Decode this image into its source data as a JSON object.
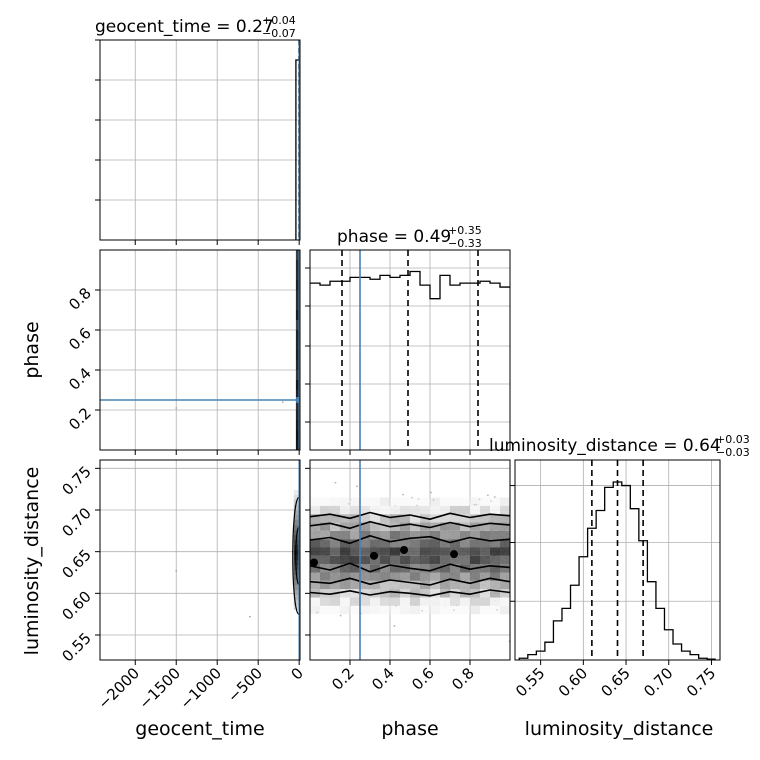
{
  "chart_data": {
    "type": "corner",
    "parameters": [
      "geocent_time",
      "phase",
      "luminosity_distance"
    ],
    "truth": {
      "geocent_time": 0,
      "phase": 0.25,
      "luminosity_distance": 0.65
    },
    "colors": {
      "truth": "#4682b4",
      "hist": "#000000",
      "grid": "#b0b0b0",
      "density_dark": "#1a1a1a"
    },
    "titles": [
      {
        "param": "geocent_time",
        "prefix": "geocent_time = 0.27",
        "sup": "+0.04",
        "sub": "−0.07"
      },
      {
        "param": "phase",
        "prefix": "phase = 0.49",
        "sup": "+0.35",
        "sub": "−0.33"
      },
      {
        "param": "luminosity_distance",
        "prefix": "luminosity_distance = 0.64",
        "sup": "+0.03",
        "sub": "−0.03"
      }
    ],
    "axis_labels": {
      "bottom": [
        "geocent_time",
        "phase",
        "luminosity_distance"
      ],
      "left": [
        "phase",
        "luminosity_distance"
      ]
    },
    "ranges": {
      "geocent_time": [
        -2430,
        10
      ],
      "phase": [
        0,
        1
      ],
      "luminosity_distance": [
        0.52,
        0.76
      ]
    },
    "ticks": {
      "geocent_time": {
        "values": [
          -2000,
          -1500,
          -1000,
          -500,
          0
        ],
        "labels": [
          "−2000",
          "−1500",
          "−1000",
          "−500",
          "0"
        ]
      },
      "phase": {
        "values": [
          0.2,
          0.4,
          0.6,
          0.8
        ],
        "labels": [
          "0.2",
          "0.4",
          "0.6",
          "0.8"
        ]
      },
      "luminosity_distance": {
        "values": [
          0.55,
          0.6,
          0.65,
          0.7,
          0.75
        ],
        "labels": [
          "0.55",
          "0.60",
          "0.65",
          "0.70",
          "0.75"
        ]
      }
    },
    "quantiles": {
      "geocent_time": [
        0.2,
        0.27,
        0.31
      ],
      "phase": [
        0.16,
        0.49,
        0.84
      ],
      "luminosity_distance": [
        0.61,
        0.64,
        0.67
      ]
    },
    "hist_phase": {
      "edges_start": 0,
      "bin_width": 0.05,
      "heights": [
        0.86,
        0.85,
        0.87,
        0.87,
        0.89,
        0.89,
        0.88,
        0.9,
        0.89,
        0.9,
        0.92,
        0.85,
        0.78,
        0.9,
        0.85,
        0.86,
        0.86,
        0.87,
        0.86,
        0.84
      ]
    },
    "hist_lumdist": {
      "edges_start": 0.525,
      "bin_width": 0.01,
      "heights": [
        0.01,
        0.03,
        0.05,
        0.1,
        0.22,
        0.29,
        0.42,
        0.58,
        0.74,
        0.84,
        0.97,
        1.0,
        0.98,
        0.85,
        0.67,
        0.44,
        0.29,
        0.17,
        0.09,
        0.05,
        0.03,
        0.01,
        0.005
      ]
    },
    "hist_geocent": {
      "bars": [
        {
          "x0": -40,
          "x1": 5,
          "height": 1.0
        }
      ],
      "ylim": [
        0,
        1.0
      ]
    },
    "contours_phase_lumdist": {
      "levels": [
        {
          "x": [
            0,
            0.1,
            0.2,
            0.3,
            0.4,
            0.5,
            0.6,
            0.7,
            0.8,
            0.9,
            1.0
          ],
          "y": [
            0.601,
            0.599,
            0.603,
            0.598,
            0.602,
            0.6,
            0.597,
            0.602,
            0.599,
            0.604,
            0.601
          ]
        },
        {
          "x": [
            0,
            0.1,
            0.2,
            0.3,
            0.4,
            0.5,
            0.6,
            0.7,
            0.8,
            0.9,
            1.0
          ],
          "y": [
            0.614,
            0.612,
            0.618,
            0.611,
            0.616,
            0.613,
            0.61,
            0.617,
            0.612,
            0.618,
            0.614
          ]
        },
        {
          "x": [
            0,
            0.1,
            0.2,
            0.3,
            0.4,
            0.5,
            0.6,
            0.7,
            0.8,
            0.9,
            1.0
          ],
          "y": [
            0.633,
            0.628,
            0.636,
            0.626,
            0.634,
            0.63,
            0.627,
            0.635,
            0.629,
            0.633,
            0.631
          ]
        },
        {
          "x": [
            0,
            0.1,
            0.2,
            0.3,
            0.4,
            0.5,
            0.6,
            0.7,
            0.8,
            0.9,
            1.0
          ],
          "y": [
            0.664,
            0.667,
            0.66,
            0.669,
            0.662,
            0.666,
            0.668,
            0.661,
            0.667,
            0.663,
            0.665
          ]
        },
        {
          "x": [
            0,
            0.1,
            0.2,
            0.3,
            0.4,
            0.5,
            0.6,
            0.7,
            0.8,
            0.9,
            1.0
          ],
          "y": [
            0.681,
            0.684,
            0.678,
            0.686,
            0.68,
            0.683,
            0.679,
            0.685,
            0.68,
            0.684,
            0.682
          ]
        },
        {
          "x": [
            0,
            0.1,
            0.2,
            0.3,
            0.4,
            0.5,
            0.6,
            0.7,
            0.8,
            0.9,
            1.0
          ],
          "y": [
            0.692,
            0.695,
            0.69,
            0.697,
            0.691,
            0.694,
            0.689,
            0.696,
            0.691,
            0.695,
            0.693
          ]
        }
      ],
      "blobs": [
        {
          "x": 0.32,
          "y": 0.645
        },
        {
          "x": 0.47,
          "y": 0.652
        },
        {
          "x": 0.72,
          "y": 0.647
        },
        {
          "x": 0.02,
          "y": 0.637
        }
      ]
    }
  }
}
